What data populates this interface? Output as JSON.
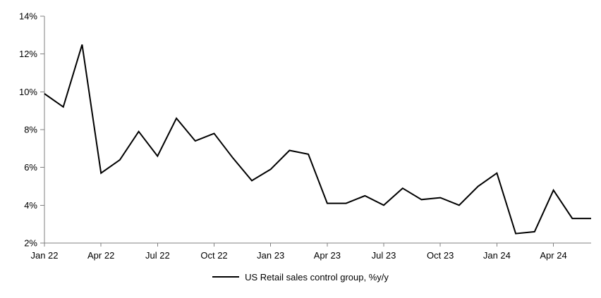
{
  "chart_data": {
    "type": "line",
    "title": "",
    "xlabel": "",
    "ylabel": "",
    "ylim": [
      2,
      14
    ],
    "y_tick_step": 2,
    "y_tick_labels": [
      "2%",
      "4%",
      "6%",
      "8%",
      "10%",
      "12%",
      "14%"
    ],
    "x": [
      "Jan 22",
      "Feb 22",
      "Mar 22",
      "Apr 22",
      "May 22",
      "Jun 22",
      "Jul 22",
      "Aug 22",
      "Sep 22",
      "Oct 22",
      "Nov 22",
      "Dec 22",
      "Jan 23",
      "Feb 23",
      "Mar 23",
      "Apr 23",
      "May 23",
      "Jun 23",
      "Jul 23",
      "Aug 23",
      "Sep 23",
      "Oct 23",
      "Nov 23",
      "Dec 23",
      "Jan 24",
      "Feb 24",
      "Mar 24",
      "Apr 24",
      "May 24",
      "Jun 24"
    ],
    "x_tick_labels": [
      "Jan 22",
      "Apr 22",
      "Jul 22",
      "Oct 22",
      "Jan 23",
      "Apr 23",
      "Jul 23",
      "Oct 23",
      "Jan 24",
      "Apr 24"
    ],
    "x_tick_every": 3,
    "series": [
      {
        "name": "US Retail sales control group, %y/y",
        "color": "#000000",
        "line_width": 2,
        "values": [
          9.9,
          9.2,
          12.5,
          5.7,
          6.4,
          7.9,
          6.6,
          8.6,
          7.4,
          7.8,
          6.5,
          5.3,
          5.9,
          6.9,
          6.7,
          4.1,
          4.1,
          4.5,
          4.0,
          4.9,
          4.3,
          4.4,
          4.0,
          5.0,
          5.7,
          2.5,
          2.6,
          4.8,
          3.3,
          3.3
        ]
      }
    ],
    "grid": false,
    "legend_position": "bottom-center",
    "axis_color": "#808080",
    "text_color": "#000000",
    "background_color": "#ffffff"
  }
}
